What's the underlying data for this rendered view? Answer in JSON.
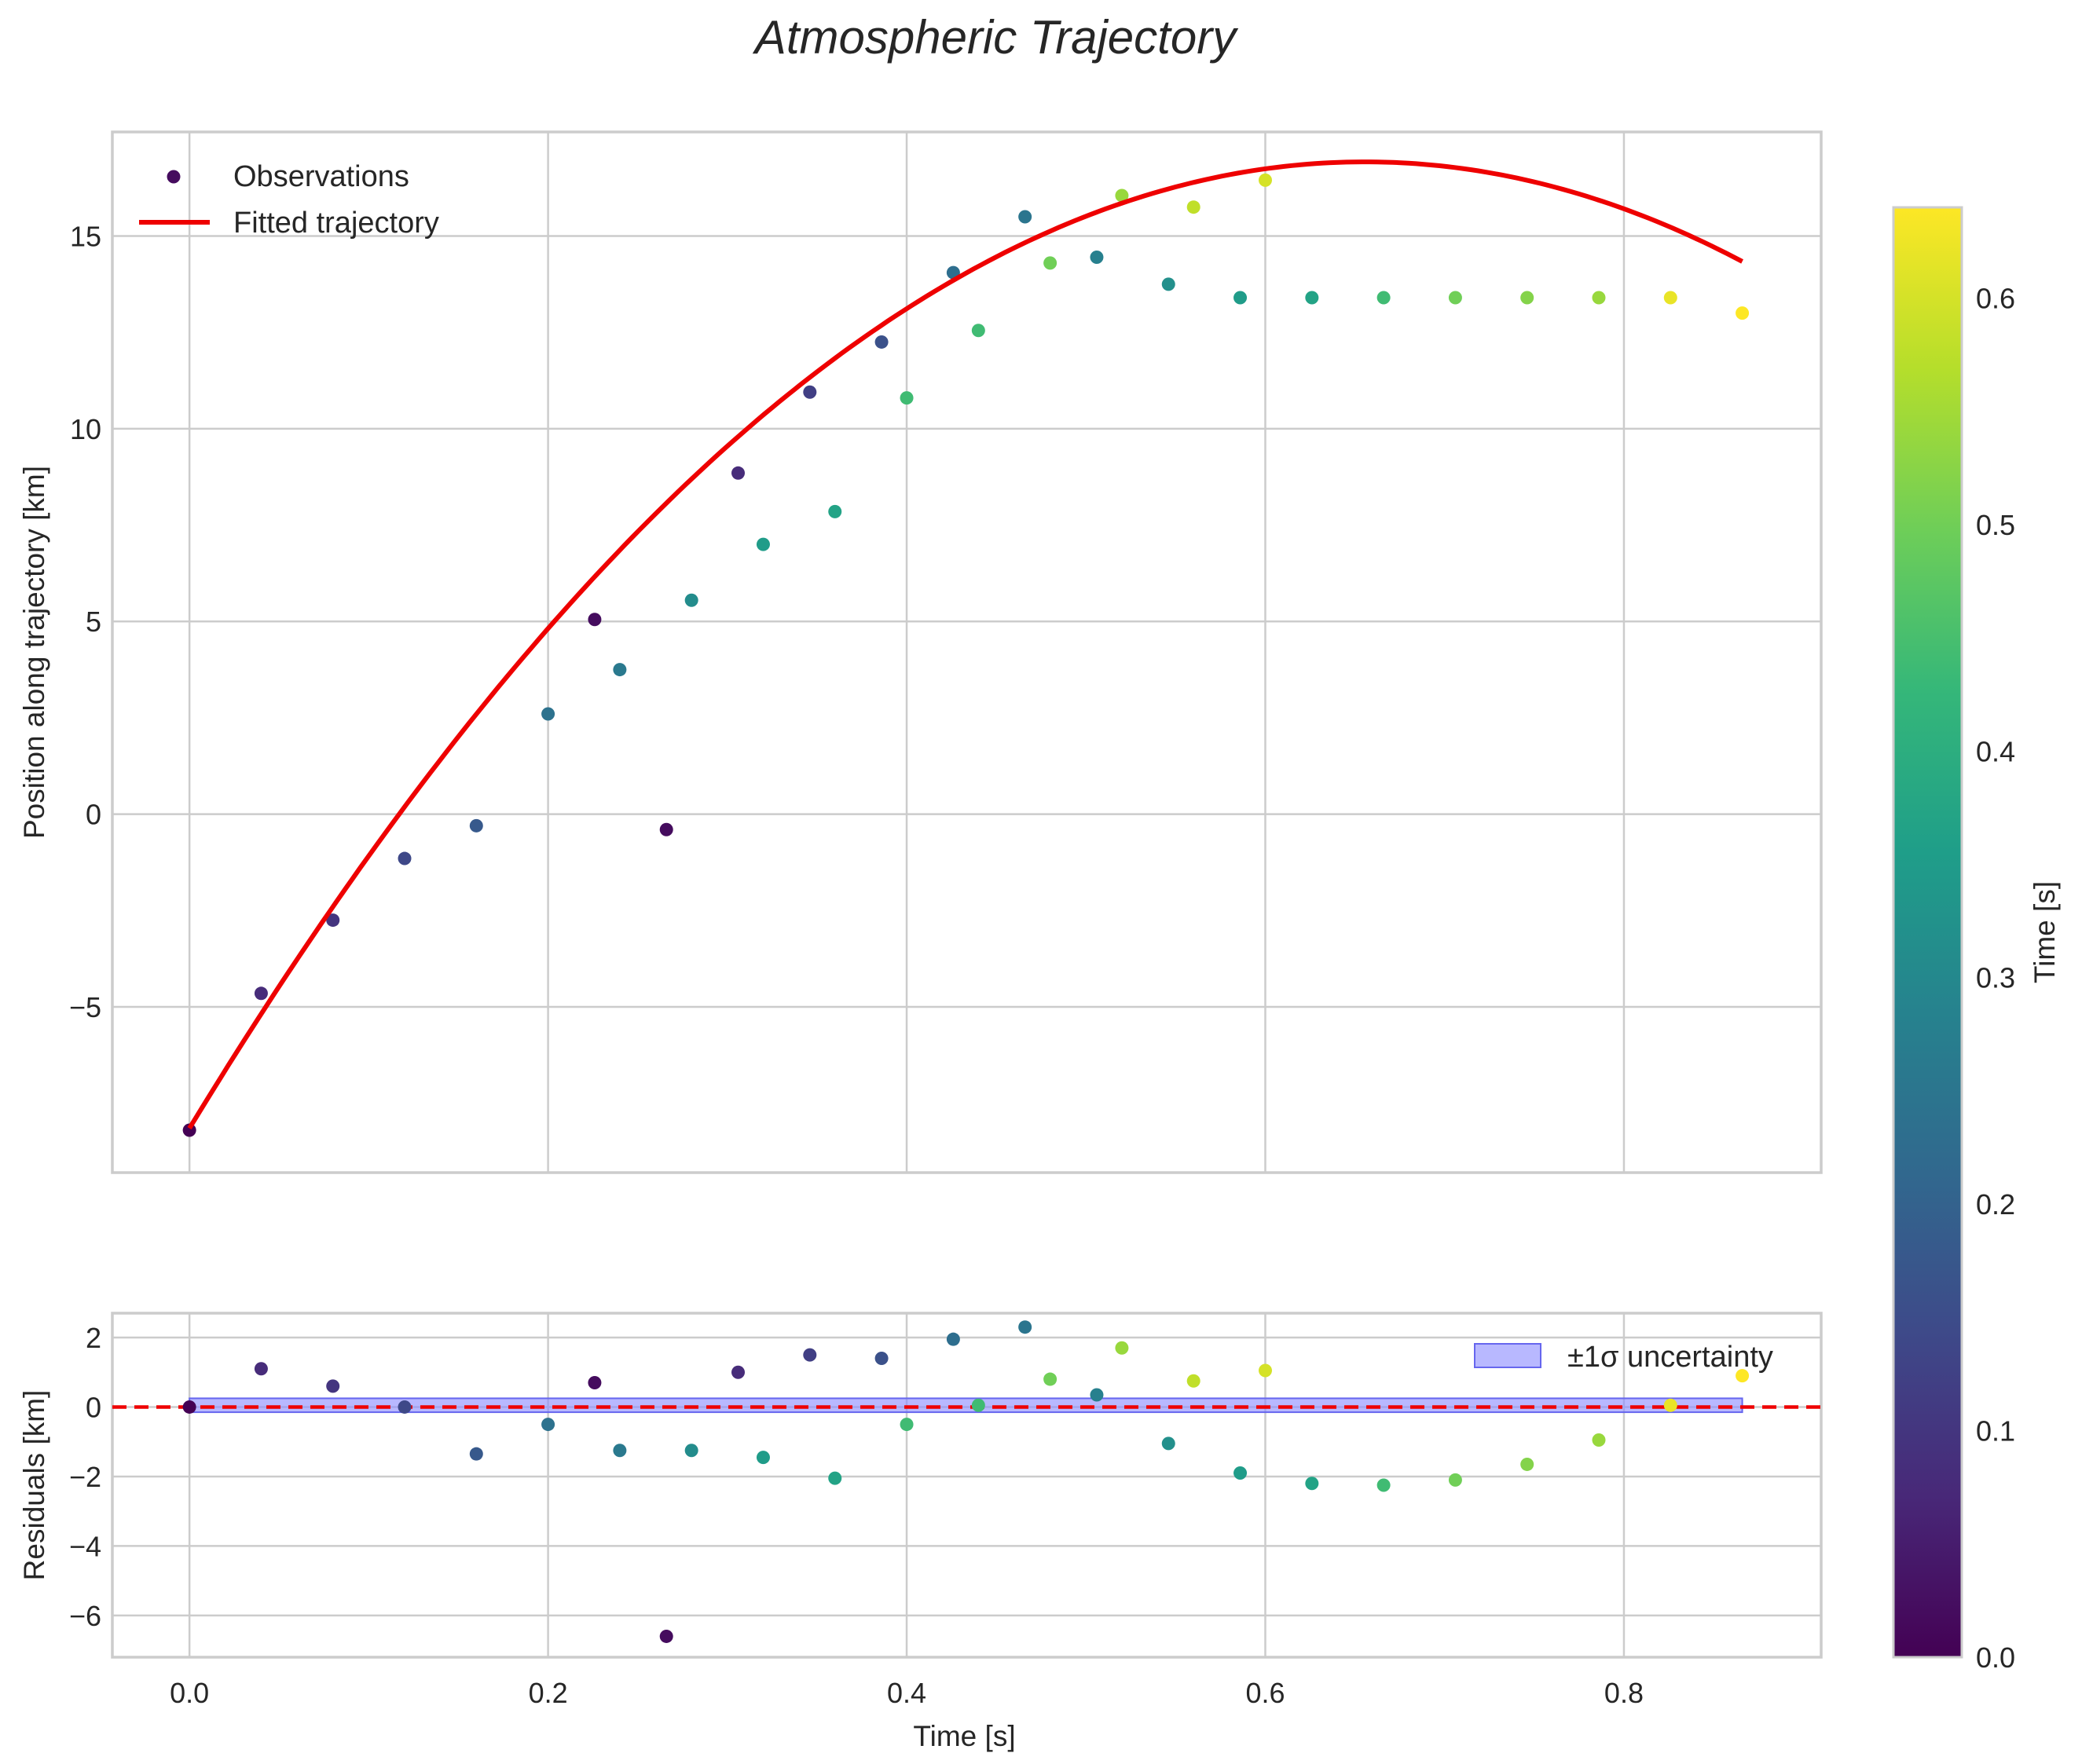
{
  "title": "Atmospheric Trajectory",
  "chart_data": [
    {
      "type": "scatter",
      "panel": "main",
      "ylabel": "Position along trajectory [km]",
      "xlim": [
        -0.043,
        0.91
      ],
      "ylim": [
        -9.3,
        17.7
      ],
      "xticks": [
        0.0,
        0.2,
        0.4,
        0.6,
        0.8
      ],
      "yticks": [
        -5,
        0,
        5,
        10,
        15
      ],
      "ytick_labels": [
        "−5",
        "0",
        "5",
        "10",
        "15"
      ],
      "grid": true,
      "legend": {
        "position": "top-left",
        "entries": [
          "Observations",
          "Fitted trajectory"
        ]
      },
      "series": [
        {
          "name": "Observations",
          "color_by": "time",
          "x": [
            0.0,
            0.04,
            0.08,
            0.12,
            0.16,
            0.2,
            0.226,
            0.24,
            0.266,
            0.28,
            0.306,
            0.32,
            0.346,
            0.36,
            0.386,
            0.4,
            0.426,
            0.44,
            0.466,
            0.48,
            0.506,
            0.52,
            0.546,
            0.56,
            0.586,
            0.6,
            0.626,
            0.666,
            0.706,
            0.746,
            0.786,
            0.826,
            0.866
          ],
          "y": [
            -8.2,
            -4.65,
            -2.75,
            -1.15,
            -0.3,
            2.6,
            5.05,
            3.75,
            -0.4,
            5.55,
            8.85,
            7.0,
            10.95,
            7.85,
            12.25,
            10.8,
            14.05,
            12.55,
            15.5,
            14.3,
            14.45,
            16.05,
            13.75,
            15.75,
            13.4,
            16.45,
            13.4,
            13.4,
            13.4,
            13.4,
            13.4,
            13.4,
            13.0
          ],
          "c": [
            0.0,
            0.08,
            0.1,
            0.14,
            0.18,
            0.24,
            0.02,
            0.26,
            0.02,
            0.31,
            0.08,
            0.35,
            0.12,
            0.37,
            0.16,
            0.44,
            0.23,
            0.44,
            0.25,
            0.5,
            0.28,
            0.54,
            0.32,
            0.58,
            0.35,
            0.6,
            0.37,
            0.44,
            0.5,
            0.52,
            0.54,
            0.62,
            0.64
          ]
        },
        {
          "name": "Fitted trajectory",
          "type": "line",
          "color": "#ee0000",
          "model": "quadratic",
          "coefficients": {
            "a": -58.35,
            "b": 76.5,
            "c": -8.15
          },
          "x_range": [
            0.0,
            0.866
          ]
        }
      ]
    },
    {
      "type": "scatter",
      "panel": "residuals",
      "xlabel": "Time [s]",
      "ylabel": "Residuals [km]",
      "xlim": [
        -0.043,
        0.91
      ],
      "ylim": [
        -7.2,
        2.7
      ],
      "xticks": [
        0.0,
        0.2,
        0.4,
        0.6,
        0.8
      ],
      "xtick_labels": [
        "0.0",
        "0.2",
        "0.4",
        "0.6",
        "0.8"
      ],
      "yticks": [
        -6,
        -4,
        -2,
        0,
        2
      ],
      "ytick_labels": [
        "−6",
        "−4",
        "−2",
        "0",
        "2"
      ],
      "grid": true,
      "legend": {
        "position": "top-right",
        "entries": [
          "±1σ uncertainty"
        ]
      },
      "uncertainty_band": {
        "label": "±1σ uncertainty",
        "x_range": [
          0.0,
          0.866
        ],
        "lower": -0.15,
        "upper": 0.25,
        "color": "#8888ff"
      },
      "zero_line": {
        "y": 0,
        "color": "#ee0000",
        "style": "dashed"
      },
      "residuals": [
        0.0,
        1.1,
        0.6,
        0.0,
        -1.35,
        -0.5,
        0.7,
        -1.25,
        -6.6,
        -1.25,
        1.0,
        -1.45,
        1.5,
        -2.05,
        1.4,
        -0.5,
        1.95,
        0.05,
        2.3,
        0.8,
        0.35,
        1.7,
        -1.05,
        0.75,
        -1.9,
        1.05,
        -2.2,
        -2.25,
        -2.1,
        -1.65,
        -0.95,
        0.05,
        0.9
      ]
    },
    {
      "type": "colorbar",
      "label": "Time [s]",
      "range": [
        0.0,
        0.64
      ],
      "ticks": [
        0.0,
        0.1,
        0.2,
        0.3,
        0.4,
        0.5,
        0.6
      ],
      "tick_labels": [
        "0.0",
        "0.1",
        "0.2",
        "0.3",
        "0.4",
        "0.5",
        "0.6"
      ],
      "colormap": "viridis",
      "colormap_stops": [
        "#440154",
        "#482878",
        "#3e4989",
        "#31688e",
        "#26828e",
        "#1f9e89",
        "#35b779",
        "#6ece58",
        "#b5de2b",
        "#fde725"
      ]
    }
  ]
}
